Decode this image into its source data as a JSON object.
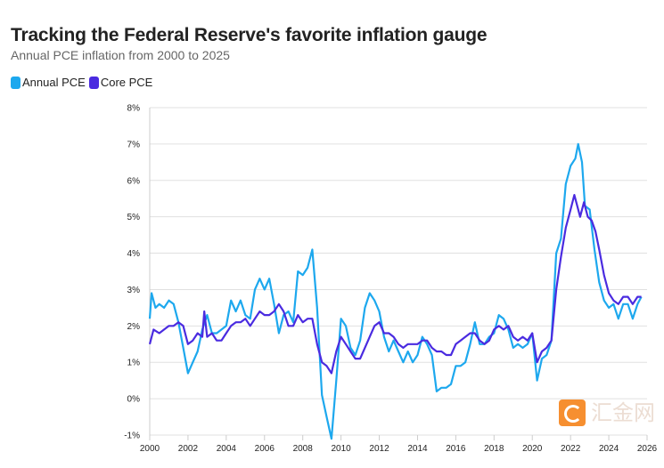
{
  "chart_data": {
    "type": "line",
    "title": "Tracking the Federal Reserve's favorite inflation gauge",
    "subtitle": "Annual PCE inflation from 2000 to 2025",
    "xlabel": "",
    "ylabel": "",
    "xlim": [
      2000,
      2026
    ],
    "ylim": [
      -1,
      8
    ],
    "x_ticks": [
      "2000",
      "2002",
      "2004",
      "2006",
      "2008",
      "2010",
      "2012",
      "2014",
      "2016",
      "2018",
      "2020",
      "2022",
      "2024",
      "2026"
    ],
    "y_ticks": [
      "-1%",
      "0%",
      "1%",
      "2%",
      "3%",
      "4%",
      "5%",
      "6%",
      "7%",
      "8%"
    ],
    "grid": true,
    "legend_position": "top-left",
    "series": [
      {
        "name": "Annual PCE",
        "color": "#1da8ee",
        "points": [
          [
            2000,
            2.2
          ],
          [
            2000.1,
            2.9
          ],
          [
            2000.3,
            2.5
          ],
          [
            2000.5,
            2.6
          ],
          [
            2000.75,
            2.5
          ],
          [
            2001,
            2.7
          ],
          [
            2001.25,
            2.6
          ],
          [
            2001.5,
            2.1
          ],
          [
            2001.75,
            1.4
          ],
          [
            2002,
            0.7
          ],
          [
            2002.25,
            1.0
          ],
          [
            2002.5,
            1.3
          ],
          [
            2002.75,
            1.9
          ],
          [
            2003,
            2.3
          ],
          [
            2003.25,
            1.8
          ],
          [
            2003.5,
            1.8
          ],
          [
            2003.75,
            1.9
          ],
          [
            2004,
            2.0
          ],
          [
            2004.25,
            2.7
          ],
          [
            2004.5,
            2.4
          ],
          [
            2004.75,
            2.7
          ],
          [
            2005,
            2.3
          ],
          [
            2005.25,
            2.2
          ],
          [
            2005.5,
            3.0
          ],
          [
            2005.75,
            3.3
          ],
          [
            2006,
            3.0
          ],
          [
            2006.25,
            3.3
          ],
          [
            2006.5,
            2.6
          ],
          [
            2006.75,
            1.8
          ],
          [
            2007,
            2.3
          ],
          [
            2007.25,
            2.4
          ],
          [
            2007.5,
            2.1
          ],
          [
            2007.75,
            3.5
          ],
          [
            2008,
            3.4
          ],
          [
            2008.25,
            3.6
          ],
          [
            2008.5,
            4.1
          ],
          [
            2008.75,
            2.5
          ],
          [
            2009,
            0.1
          ],
          [
            2009.25,
            -0.5
          ],
          [
            2009.5,
            -1.1
          ],
          [
            2009.75,
            0.5
          ],
          [
            2010,
            2.2
          ],
          [
            2010.25,
            2.0
          ],
          [
            2010.5,
            1.4
          ],
          [
            2010.75,
            1.2
          ],
          [
            2011,
            1.6
          ],
          [
            2011.25,
            2.5
          ],
          [
            2011.5,
            2.9
          ],
          [
            2011.75,
            2.7
          ],
          [
            2012,
            2.4
          ],
          [
            2012.25,
            1.7
          ],
          [
            2012.5,
            1.3
          ],
          [
            2012.75,
            1.6
          ],
          [
            2013,
            1.3
          ],
          [
            2013.25,
            1.0
          ],
          [
            2013.5,
            1.3
          ],
          [
            2013.75,
            1.0
          ],
          [
            2014,
            1.2
          ],
          [
            2014.25,
            1.7
          ],
          [
            2014.5,
            1.5
          ],
          [
            2014.75,
            1.2
          ],
          [
            2015,
            0.2
          ],
          [
            2015.25,
            0.3
          ],
          [
            2015.5,
            0.3
          ],
          [
            2015.75,
            0.4
          ],
          [
            2016,
            0.9
          ],
          [
            2016.25,
            0.9
          ],
          [
            2016.5,
            1.0
          ],
          [
            2016.75,
            1.5
          ],
          [
            2017,
            2.1
          ],
          [
            2017.25,
            1.5
          ],
          [
            2017.5,
            1.5
          ],
          [
            2017.75,
            1.7
          ],
          [
            2018,
            1.8
          ],
          [
            2018.25,
            2.3
          ],
          [
            2018.5,
            2.2
          ],
          [
            2018.75,
            1.9
          ],
          [
            2019,
            1.4
          ],
          [
            2019.25,
            1.5
          ],
          [
            2019.5,
            1.4
          ],
          [
            2019.75,
            1.5
          ],
          [
            2020,
            1.8
          ],
          [
            2020.25,
            0.5
          ],
          [
            2020.5,
            1.1
          ],
          [
            2020.75,
            1.2
          ],
          [
            2021,
            1.6
          ],
          [
            2021.25,
            4.0
          ],
          [
            2021.5,
            4.4
          ],
          [
            2021.75,
            5.9
          ],
          [
            2022,
            6.4
          ],
          [
            2022.25,
            6.6
          ],
          [
            2022.4,
            7.0
          ],
          [
            2022.6,
            6.5
          ],
          [
            2022.75,
            5.3
          ],
          [
            2023,
            5.2
          ],
          [
            2023.25,
            4.1
          ],
          [
            2023.5,
            3.2
          ],
          [
            2023.75,
            2.7
          ],
          [
            2024,
            2.5
          ],
          [
            2024.25,
            2.6
          ],
          [
            2024.5,
            2.2
          ],
          [
            2024.75,
            2.6
          ],
          [
            2025,
            2.6
          ],
          [
            2025.25,
            2.2
          ],
          [
            2025.5,
            2.6
          ],
          [
            2025.7,
            2.8
          ]
        ]
      },
      {
        "name": "Core PCE",
        "color": "#4a2be0",
        "points": [
          [
            2000,
            1.5
          ],
          [
            2000.2,
            1.9
          ],
          [
            2000.5,
            1.8
          ],
          [
            2000.75,
            1.9
          ],
          [
            2001,
            2.0
          ],
          [
            2001.25,
            2.0
          ],
          [
            2001.5,
            2.1
          ],
          [
            2001.75,
            2.0
          ],
          [
            2002,
            1.5
          ],
          [
            2002.25,
            1.6
          ],
          [
            2002.5,
            1.8
          ],
          [
            2002.75,
            1.7
          ],
          [
            2002.85,
            2.4
          ],
          [
            2003,
            1.7
          ],
          [
            2003.25,
            1.8
          ],
          [
            2003.5,
            1.6
          ],
          [
            2003.75,
            1.6
          ],
          [
            2004,
            1.8
          ],
          [
            2004.25,
            2.0
          ],
          [
            2004.5,
            2.1
          ],
          [
            2004.75,
            2.1
          ],
          [
            2005,
            2.2
          ],
          [
            2005.25,
            2.0
          ],
          [
            2005.5,
            2.2
          ],
          [
            2005.75,
            2.4
          ],
          [
            2006,
            2.3
          ],
          [
            2006.25,
            2.3
          ],
          [
            2006.5,
            2.4
          ],
          [
            2006.75,
            2.6
          ],
          [
            2007,
            2.4
          ],
          [
            2007.25,
            2.0
          ],
          [
            2007.5,
            2.0
          ],
          [
            2007.75,
            2.3
          ],
          [
            2008,
            2.1
          ],
          [
            2008.25,
            2.2
          ],
          [
            2008.5,
            2.2
          ],
          [
            2008.75,
            1.5
          ],
          [
            2009,
            1.0
          ],
          [
            2009.25,
            0.9
          ],
          [
            2009.5,
            0.7
          ],
          [
            2009.75,
            1.3
          ],
          [
            2010,
            1.7
          ],
          [
            2010.25,
            1.5
          ],
          [
            2010.5,
            1.3
          ],
          [
            2010.75,
            1.1
          ],
          [
            2011,
            1.1
          ],
          [
            2011.25,
            1.4
          ],
          [
            2011.5,
            1.7
          ],
          [
            2011.75,
            2.0
          ],
          [
            2012,
            2.1
          ],
          [
            2012.25,
            1.8
          ],
          [
            2012.5,
            1.8
          ],
          [
            2012.75,
            1.7
          ],
          [
            2013,
            1.5
          ],
          [
            2013.25,
            1.4
          ],
          [
            2013.5,
            1.5
          ],
          [
            2013.75,
            1.5
          ],
          [
            2014,
            1.5
          ],
          [
            2014.25,
            1.6
          ],
          [
            2014.5,
            1.6
          ],
          [
            2014.75,
            1.4
          ],
          [
            2015,
            1.3
          ],
          [
            2015.25,
            1.3
          ],
          [
            2015.5,
            1.2
          ],
          [
            2015.75,
            1.2
          ],
          [
            2016,
            1.5
          ],
          [
            2016.25,
            1.6
          ],
          [
            2016.5,
            1.7
          ],
          [
            2016.75,
            1.8
          ],
          [
            2017,
            1.8
          ],
          [
            2017.25,
            1.6
          ],
          [
            2017.5,
            1.5
          ],
          [
            2017.75,
            1.6
          ],
          [
            2018,
            1.9
          ],
          [
            2018.25,
            2.0
          ],
          [
            2018.5,
            1.9
          ],
          [
            2018.75,
            2.0
          ],
          [
            2019,
            1.7
          ],
          [
            2019.25,
            1.6
          ],
          [
            2019.5,
            1.7
          ],
          [
            2019.75,
            1.6
          ],
          [
            2020,
            1.8
          ],
          [
            2020.25,
            1.0
          ],
          [
            2020.5,
            1.3
          ],
          [
            2020.75,
            1.4
          ],
          [
            2021,
            1.6
          ],
          [
            2021.25,
            3.0
          ],
          [
            2021.5,
            3.9
          ],
          [
            2021.75,
            4.7
          ],
          [
            2022,
            5.2
          ],
          [
            2022.2,
            5.6
          ],
          [
            2022.5,
            5.0
          ],
          [
            2022.7,
            5.4
          ],
          [
            2022.9,
            5.0
          ],
          [
            2023.1,
            4.9
          ],
          [
            2023.3,
            4.6
          ],
          [
            2023.5,
            4.1
          ],
          [
            2023.75,
            3.4
          ],
          [
            2024,
            2.9
          ],
          [
            2024.25,
            2.7
          ],
          [
            2024.5,
            2.6
          ],
          [
            2024.75,
            2.8
          ],
          [
            2025,
            2.8
          ],
          [
            2025.25,
            2.6
          ],
          [
            2025.5,
            2.8
          ],
          [
            2025.7,
            2.8
          ]
        ]
      }
    ]
  },
  "watermark": "汇金网"
}
